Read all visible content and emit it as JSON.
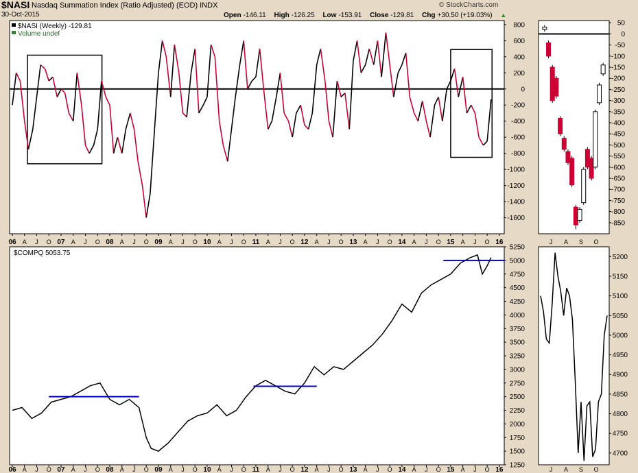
{
  "header": {
    "symbol": "$NASI",
    "description": "Nasdaq Summation Index (Ratio Adjusted) (EOD)  INDX",
    "date": "30-Oct-2015",
    "open_label": "Open",
    "open": "-146.11",
    "high_label": "High",
    "high": "-126.25",
    "low_label": "Low",
    "low": "-153.91",
    "close_label": "Close",
    "close": "-129.81",
    "chg_label": "Chg",
    "chg": "+30.50 (+19.03%)",
    "brand": "© StockCharts.com"
  },
  "colors": {
    "background": "#e6d9c5",
    "panel": "#ffffff",
    "up": "#000000",
    "down": "#cc0033",
    "support": "#0000cc"
  },
  "chart_data": [
    {
      "type": "line",
      "name": "$NASI (Weekly) -129.81",
      "legend": [
        "$NASI (Weekly) -129.81",
        "Volume undef"
      ],
      "ylim": [
        -1800,
        850
      ],
      "yticks": [
        800,
        600,
        400,
        200,
        0,
        -200,
        -400,
        -600,
        -800,
        -1000,
        -1200,
        -1400,
        -1600
      ],
      "xlim": [
        2006.0,
        2016.1
      ],
      "xticks": [
        {
          "x": 2006.0,
          "label": "06",
          "major": true
        },
        {
          "x": 2006.25,
          "label": "A"
        },
        {
          "x": 2006.5,
          "label": "J"
        },
        {
          "x": 2006.75,
          "label": "O"
        },
        {
          "x": 2007.0,
          "label": "07",
          "major": true
        },
        {
          "x": 2007.25,
          "label": "A"
        },
        {
          "x": 2007.5,
          "label": "J"
        },
        {
          "x": 2007.75,
          "label": "O"
        },
        {
          "x": 2008.0,
          "label": "08",
          "major": true
        },
        {
          "x": 2008.25,
          "label": "A"
        },
        {
          "x": 2008.5,
          "label": "J"
        },
        {
          "x": 2008.75,
          "label": "O"
        },
        {
          "x": 2009.0,
          "label": "09",
          "major": true
        },
        {
          "x": 2009.25,
          "label": "A"
        },
        {
          "x": 2009.5,
          "label": "J"
        },
        {
          "x": 2009.75,
          "label": "O"
        },
        {
          "x": 2010.0,
          "label": "10",
          "major": true
        },
        {
          "x": 2010.25,
          "label": "A"
        },
        {
          "x": 2010.5,
          "label": "J"
        },
        {
          "x": 2010.75,
          "label": "O"
        },
        {
          "x": 2011.0,
          "label": "11",
          "major": true
        },
        {
          "x": 2011.25,
          "label": "A"
        },
        {
          "x": 2011.5,
          "label": "J"
        },
        {
          "x": 2011.75,
          "label": "O"
        },
        {
          "x": 2012.0,
          "label": "12",
          "major": true
        },
        {
          "x": 2012.25,
          "label": "A"
        },
        {
          "x": 2012.5,
          "label": "J"
        },
        {
          "x": 2012.75,
          "label": "O"
        },
        {
          "x": 2013.0,
          "label": "13",
          "major": true
        },
        {
          "x": 2013.25,
          "label": "A"
        },
        {
          "x": 2013.5,
          "label": "J"
        },
        {
          "x": 2013.75,
          "label": "O"
        },
        {
          "x": 2014.0,
          "label": "14",
          "major": true
        },
        {
          "x": 2014.25,
          "label": "A"
        },
        {
          "x": 2014.5,
          "label": "J"
        },
        {
          "x": 2014.75,
          "label": "O"
        },
        {
          "x": 2015.0,
          "label": "15",
          "major": true
        },
        {
          "x": 2015.25,
          "label": "A"
        },
        {
          "x": 2015.5,
          "label": "J"
        },
        {
          "x": 2015.75,
          "label": "O"
        },
        {
          "x": 2016.0,
          "label": "16",
          "major": true
        }
      ],
      "zero_line": 0,
      "x": [
        2006.0,
        2006.08,
        2006.16,
        2006.25,
        2006.33,
        2006.42,
        2006.5,
        2006.58,
        2006.67,
        2006.75,
        2006.83,
        2006.92,
        2007.0,
        2007.08,
        2007.16,
        2007.25,
        2007.33,
        2007.42,
        2007.5,
        2007.58,
        2007.67,
        2007.75,
        2007.83,
        2007.92,
        2008.0,
        2008.08,
        2008.16,
        2008.25,
        2008.33,
        2008.42,
        2008.5,
        2008.58,
        2008.67,
        2008.75,
        2008.83,
        2008.92,
        2009.0,
        2009.08,
        2009.16,
        2009.25,
        2009.33,
        2009.42,
        2009.5,
        2009.58,
        2009.67,
        2009.75,
        2009.83,
        2009.92,
        2010.0,
        2010.08,
        2010.16,
        2010.25,
        2010.33,
        2010.42,
        2010.5,
        2010.58,
        2010.67,
        2010.75,
        2010.83,
        2010.92,
        2011.0,
        2011.08,
        2011.16,
        2011.25,
        2011.33,
        2011.42,
        2011.5,
        2011.58,
        2011.67,
        2011.75,
        2011.83,
        2011.92,
        2012.0,
        2012.08,
        2012.16,
        2012.25,
        2012.33,
        2012.42,
        2012.5,
        2012.58,
        2012.67,
        2012.75,
        2012.83,
        2012.92,
        2013.0,
        2013.08,
        2013.16,
        2013.25,
        2013.33,
        2013.42,
        2013.5,
        2013.58,
        2013.67,
        2013.75,
        2013.83,
        2013.92,
        2014.0,
        2014.08,
        2014.16,
        2014.25,
        2014.33,
        2014.42,
        2014.5,
        2014.58,
        2014.67,
        2014.75,
        2014.83,
        2014.92,
        2015.0,
        2015.08,
        2015.16,
        2015.25,
        2015.33,
        2015.42,
        2015.5,
        2015.58,
        2015.67,
        2015.75,
        2015.83
      ],
      "values": [
        -200,
        200,
        100,
        -400,
        -750,
        -500,
        -100,
        300,
        250,
        100,
        150,
        -100,
        0,
        -50,
        -300,
        -400,
        200,
        -200,
        -700,
        -800,
        -700,
        -500,
        100,
        -100,
        -200,
        -800,
        -600,
        -800,
        -500,
        -300,
        -500,
        -900,
        -1200,
        -1600,
        -1300,
        -500,
        200,
        600,
        400,
        -100,
        550,
        200,
        -300,
        -350,
        200,
        500,
        -300,
        -200,
        -100,
        550,
        400,
        -400,
        -700,
        -900,
        -500,
        -100,
        300,
        600,
        0,
        100,
        150,
        500,
        0,
        -500,
        -400,
        -100,
        200,
        -300,
        -400,
        -600,
        -300,
        -200,
        -450,
        -500,
        -300,
        300,
        500,
        100,
        -400,
        -600,
        100,
        -100,
        -50,
        -500,
        350,
        600,
        200,
        300,
        500,
        300,
        600,
        150,
        700,
        300,
        -100,
        200,
        300,
        450,
        -100,
        -300,
        -400,
        -150,
        -400,
        -600,
        -200,
        -100,
        -400,
        0,
        100,
        250,
        -100,
        150,
        -300,
        -200,
        -300,
        -600,
        -700,
        -650,
        -130
      ],
      "boxes": [
        {
          "x": [
            2006.31,
            2007.84
          ],
          "y": [
            -930,
            420
          ]
        },
        {
          "x": [
            2015.0,
            2015.85
          ],
          "y": [
            -850,
            490
          ]
        }
      ]
    },
    {
      "type": "bar",
      "name": "$NASI daily candles",
      "ylim": [
        -900,
        60
      ],
      "yticks": [
        50,
        0,
        -50,
        -100,
        -150,
        -200,
        -250,
        -300,
        -350,
        -400,
        -450,
        -500,
        -550,
        -600,
        -650,
        -700,
        -750,
        -800,
        -850
      ],
      "x_labels": [
        "J",
        "A",
        "S",
        "O"
      ],
      "candles": [
        {
          "o": 20,
          "c": 30,
          "h": 40,
          "l": 10
        },
        {
          "o": -40,
          "c": -100,
          "h": -30,
          "l": -110
        },
        {
          "o": -150,
          "c": -300,
          "h": -140,
          "l": -310
        },
        {
          "o": -200,
          "c": -280,
          "h": -190,
          "l": -290
        },
        {
          "o": -380,
          "c": -450,
          "h": -370,
          "l": -460
        },
        {
          "o": -470,
          "c": -520,
          "h": -460,
          "l": -530
        },
        {
          "o": -530,
          "c": -580,
          "h": -520,
          "l": -590
        },
        {
          "o": -560,
          "c": -680,
          "h": -550,
          "l": -690
        },
        {
          "o": -780,
          "c": -860,
          "h": -770,
          "l": -880
        },
        {
          "o": -840,
          "c": -790,
          "h": -780,
          "l": -850
        },
        {
          "o": -760,
          "c": -610,
          "h": -600,
          "l": -770
        },
        {
          "o": -520,
          "c": -600,
          "h": -510,
          "l": -610
        },
        {
          "o": -560,
          "c": -650,
          "h": -550,
          "l": -660
        },
        {
          "o": -600,
          "c": -350,
          "h": -340,
          "l": -610
        },
        {
          "o": -310,
          "c": -230,
          "h": -220,
          "l": -320
        },
        {
          "o": -180,
          "c": -140,
          "h": -130,
          "l": -190
        }
      ]
    },
    {
      "type": "line",
      "name": "$COMPQ 5053.75",
      "legend": [
        "$COMPQ 5053.75"
      ],
      "ylim": [
        1250,
        5250
      ],
      "yticks": [
        5250,
        5000,
        4750,
        4500,
        4250,
        4000,
        3750,
        3500,
        3250,
        3000,
        2750,
        2500,
        2250,
        2000,
        1750,
        1500,
        1250
      ],
      "xlim": [
        2006.0,
        2016.1
      ],
      "x": [
        2006.0,
        2006.2,
        2006.4,
        2006.6,
        2006.8,
        2007.0,
        2007.2,
        2007.4,
        2007.6,
        2007.8,
        2008.0,
        2008.2,
        2008.4,
        2008.6,
        2008.75,
        2008.85,
        2009.0,
        2009.2,
        2009.4,
        2009.6,
        2009.8,
        2010.0,
        2010.2,
        2010.4,
        2010.6,
        2010.8,
        2011.0,
        2011.2,
        2011.4,
        2011.6,
        2011.8,
        2012.0,
        2012.2,
        2012.4,
        2012.6,
        2012.8,
        2013.0,
        2013.2,
        2013.4,
        2013.6,
        2013.8,
        2014.0,
        2014.2,
        2014.4,
        2014.6,
        2014.8,
        2015.0,
        2015.2,
        2015.4,
        2015.55,
        2015.65,
        2015.75,
        2015.83
      ],
      "values": [
        2250,
        2300,
        2100,
        2200,
        2400,
        2450,
        2500,
        2600,
        2700,
        2750,
        2450,
        2350,
        2450,
        2300,
        1750,
        1550,
        1500,
        1650,
        1850,
        2050,
        2150,
        2200,
        2350,
        2150,
        2250,
        2500,
        2700,
        2800,
        2700,
        2600,
        2550,
        2750,
        3050,
        2900,
        3050,
        3000,
        3150,
        3300,
        3450,
        3650,
        3900,
        4200,
        4050,
        4400,
        4550,
        4650,
        4750,
        4950,
        5050,
        5100,
        4750,
        4900,
        5053
      ],
      "support_lines": [
        {
          "x": [
            2006.75,
            2008.6
          ],
          "y": 2500
        },
        {
          "x": [
            2010.95,
            2012.25
          ],
          "y": 2690
        },
        {
          "x": [
            2014.85,
            2016.1
          ],
          "y": 5000
        }
      ]
    },
    {
      "type": "line",
      "name": "$COMPQ daily",
      "ylim": [
        4670,
        5225
      ],
      "yticks": [
        5200,
        5150,
        5100,
        5050,
        5000,
        4950,
        4900,
        4850,
        4800,
        4750,
        4700
      ],
      "x_labels": [
        "J",
        "A",
        "S",
        "O"
      ],
      "values": [
        5100,
        5060,
        4990,
        4980,
        5080,
        5210,
        5150,
        5110,
        5050,
        5120,
        5100,
        5040,
        4880,
        4700,
        4830,
        4680,
        4820,
        4830,
        4690,
        4710,
        4830,
        4850,
        5000,
        5050
      ]
    }
  ]
}
